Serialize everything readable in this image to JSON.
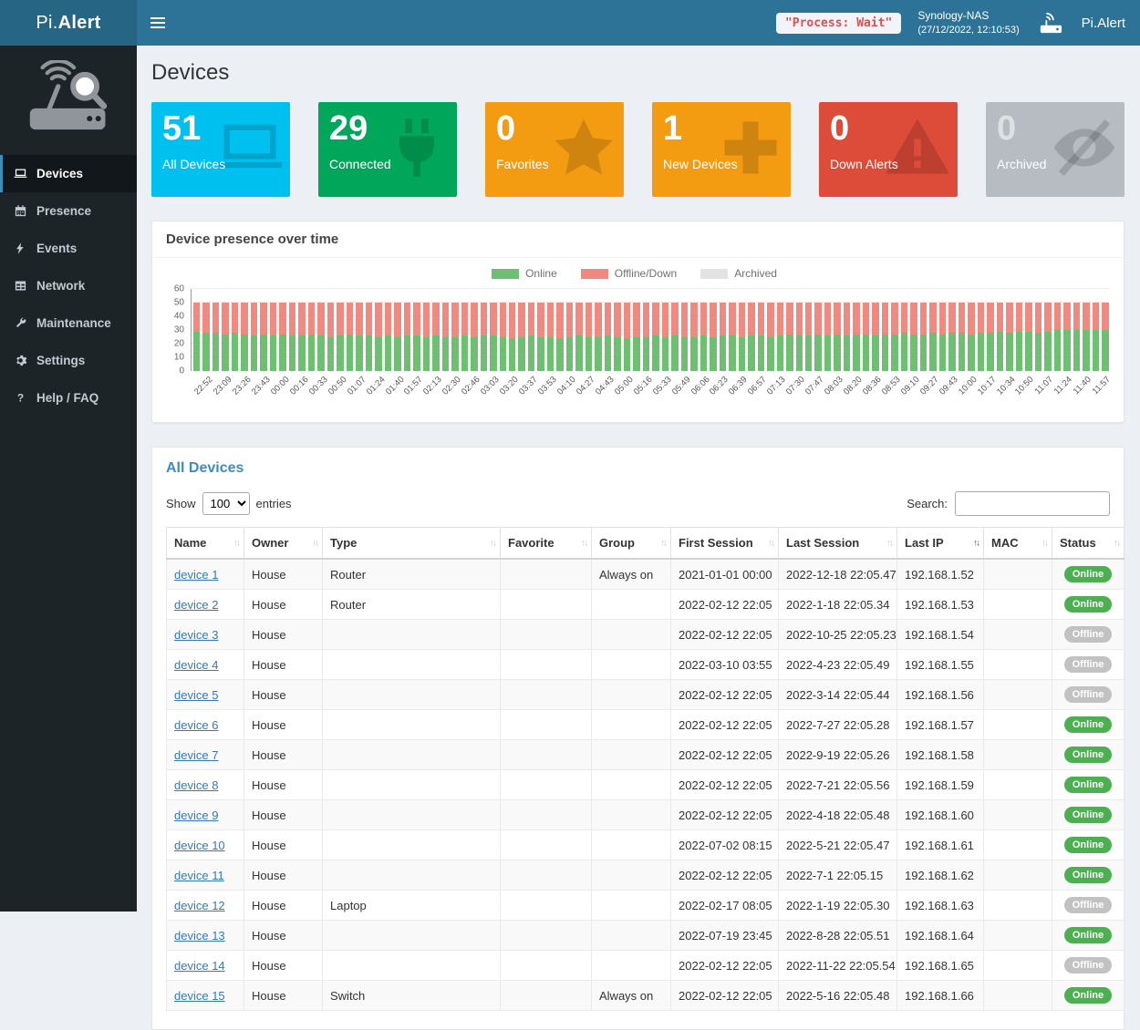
{
  "header": {
    "brand_prefix": "Pi.",
    "brand_bold": "Alert",
    "process_status": "\"Process: Wait\"",
    "host_name": "Synology-NAS",
    "host_time": "(27/12/2022, 12:10:53)",
    "app_name": "Pi.Alert",
    "accent_color": "#2d7397"
  },
  "sidebar": {
    "items": [
      {
        "label": "Devices",
        "icon": "laptop-icon",
        "active": true
      },
      {
        "label": "Presence",
        "icon": "calendar-icon",
        "active": false
      },
      {
        "label": "Events",
        "icon": "bolt-icon",
        "active": false
      },
      {
        "label": "Network",
        "icon": "network-icon",
        "active": false
      },
      {
        "label": "Maintenance",
        "icon": "wrench-icon",
        "active": false
      },
      {
        "label": "Settings",
        "icon": "gear-icon",
        "active": false
      },
      {
        "label": "Help / FAQ",
        "icon": "question-icon",
        "active": false
      }
    ]
  },
  "page": {
    "title": "Devices"
  },
  "summary_boxes": [
    {
      "value": "51",
      "label": "All Devices",
      "color": "#00c0ef",
      "icon": "laptop-icon",
      "muted": false
    },
    {
      "value": "29",
      "label": "Connected",
      "color": "#00a65a",
      "icon": "plug-icon",
      "muted": false
    },
    {
      "value": "0",
      "label": "Favorites",
      "color": "#f39c12",
      "icon": "star-icon",
      "muted": false
    },
    {
      "value": "1",
      "label": "New Devices",
      "color": "#f39c12",
      "icon": "plus-icon",
      "muted": false
    },
    {
      "value": "0",
      "label": "Down Alerts",
      "color": "#dd4b39",
      "icon": "warning-icon",
      "muted": false
    },
    {
      "value": "0",
      "label": "Archived",
      "color": "#b7bcc3",
      "icon": "eye-slash-icon",
      "muted": true
    }
  ],
  "presence_panel": {
    "title": "Device presence over time"
  },
  "chart_data": {
    "type": "bar",
    "stacked": true,
    "title": "Device presence over time",
    "xlabel": "",
    "ylabel": "",
    "ylim": [
      0,
      60
    ],
    "yticks": [
      0,
      10,
      20,
      30,
      40,
      50,
      60
    ],
    "grid": true,
    "legend_position": "top-center",
    "bars_per_label": 2,
    "legend": [
      {
        "name": "Online",
        "color": "#6fbf73"
      },
      {
        "name": "Offline/Down",
        "color": "#f08a80"
      },
      {
        "name": "Archived",
        "color": "#e3e3e3"
      }
    ],
    "x_labels": [
      "22:52",
      "23:09",
      "23:26",
      "23:43",
      "00:00",
      "00:16",
      "00:33",
      "00:50",
      "01:07",
      "01:24",
      "01:40",
      "01:57",
      "02:13",
      "02:30",
      "02:46",
      "03:03",
      "03:20",
      "03:37",
      "03:53",
      "04:10",
      "04:27",
      "04:43",
      "05:00",
      "05:16",
      "05:33",
      "05:49",
      "06:06",
      "06:23",
      "06:39",
      "06:57",
      "07:13",
      "07:30",
      "07:47",
      "08:03",
      "08:20",
      "08:36",
      "08:53",
      "09:10",
      "09:27",
      "09:43",
      "10:00",
      "10:17",
      "10:34",
      "10:50",
      "11:07",
      "11:24",
      "11:40",
      "11:57"
    ],
    "series": [
      {
        "name": "Online",
        "color": "#6fbf73",
        "values": [
          29,
          28,
          28,
          27,
          28,
          27,
          26,
          27,
          26,
          27,
          26,
          26,
          27,
          26,
          25,
          26,
          27,
          26,
          26,
          25,
          26,
          25,
          26,
          26,
          25,
          26,
          25,
          25,
          26,
          25,
          26,
          26,
          25,
          24,
          25,
          26,
          25,
          25,
          24,
          25,
          26,
          25,
          25,
          26,
          25,
          24,
          25,
          25,
          26,
          25,
          26,
          25,
          25,
          26,
          25,
          26,
          26,
          25,
          26,
          26,
          25,
          26,
          27,
          26,
          26,
          27,
          26,
          27,
          26,
          27,
          27,
          26,
          27,
          27,
          28,
          27,
          27,
          28,
          27,
          28,
          28,
          27,
          28,
          28,
          29,
          28,
          29,
          29,
          28,
          29,
          30,
          30,
          30,
          30,
          30,
          30
        ]
      },
      {
        "name": "Offline/Down",
        "color": "#f08a80",
        "values": [
          21,
          22,
          22,
          23,
          22,
          23,
          24,
          23,
          24,
          23,
          24,
          24,
          23,
          24,
          25,
          24,
          23,
          24,
          24,
          25,
          24,
          25,
          24,
          24,
          25,
          24,
          25,
          25,
          24,
          25,
          24,
          24,
          25,
          26,
          25,
          24,
          25,
          25,
          26,
          25,
          24,
          25,
          25,
          24,
          25,
          26,
          25,
          25,
          24,
          25,
          24,
          25,
          25,
          24,
          25,
          24,
          24,
          25,
          24,
          24,
          25,
          24,
          23,
          24,
          24,
          23,
          24,
          23,
          24,
          23,
          23,
          24,
          23,
          23,
          22,
          23,
          23,
          22,
          23,
          22,
          22,
          23,
          22,
          22,
          21,
          22,
          21,
          21,
          22,
          21,
          20,
          20,
          20,
          20,
          20,
          20
        ]
      }
    ]
  },
  "devices_panel": {
    "title": "All Devices",
    "show_label": "Show",
    "entries_label": "entries",
    "page_length": "100",
    "search_label": "Search:",
    "search_value": "",
    "sorted_column": "Last IP",
    "columns": [
      "Name",
      "Owner",
      "Type",
      "Favorite",
      "Group",
      "First Session",
      "Last Session",
      "Last IP",
      "MAC",
      "Status"
    ],
    "status_colors": {
      "Online": "#4caf50",
      "Offline": "#c2c2c2"
    },
    "rows": [
      {
        "name": "device 1",
        "owner": "House",
        "type": "Router",
        "favorite": "",
        "group": "Always on",
        "first_session": "2021-01-01  00:00",
        "last_session": "2022-12-18  22:05.47",
        "last_ip": "192.168.1.52",
        "mac": "",
        "status": "Online"
      },
      {
        "name": "device 2",
        "owner": "House",
        "type": "Router",
        "favorite": "",
        "group": "",
        "first_session": "2022-02-12  22:05",
        "last_session": "2022-1-18  22:05.34",
        "last_ip": "192.168.1.53",
        "mac": "",
        "status": "Online"
      },
      {
        "name": "device 3",
        "owner": "House",
        "type": "",
        "favorite": "",
        "group": "",
        "first_session": "2022-02-12  22:05",
        "last_session": "2022-10-25  22:05.23",
        "last_ip": "192.168.1.54",
        "mac": "",
        "status": "Offline"
      },
      {
        "name": "device 4",
        "owner": "House",
        "type": "",
        "favorite": "",
        "group": "",
        "first_session": "2022-03-10  03:55",
        "last_session": "2022-4-23  22:05.49",
        "last_ip": "192.168.1.55",
        "mac": "",
        "status": "Offline"
      },
      {
        "name": "device 5",
        "owner": "House",
        "type": "",
        "favorite": "",
        "group": "",
        "first_session": "2022-02-12  22:05",
        "last_session": "2022-3-14  22:05.44",
        "last_ip": "192.168.1.56",
        "mac": "",
        "status": "Offline"
      },
      {
        "name": "device 6",
        "owner": "House",
        "type": "",
        "favorite": "",
        "group": "",
        "first_session": "2022-02-12  22:05",
        "last_session": "2022-7-27  22:05.28",
        "last_ip": "192.168.1.57",
        "mac": "",
        "status": "Online"
      },
      {
        "name": "device 7",
        "owner": "House",
        "type": "",
        "favorite": "",
        "group": "",
        "first_session": "2022-02-12  22:05",
        "last_session": "2022-9-19  22:05.26",
        "last_ip": "192.168.1.58",
        "mac": "",
        "status": "Online"
      },
      {
        "name": "device 8",
        "owner": "House",
        "type": "",
        "favorite": "",
        "group": "",
        "first_session": "2022-02-12  22:05",
        "last_session": "2022-7-21  22:05.56",
        "last_ip": "192.168.1.59",
        "mac": "",
        "status": "Online"
      },
      {
        "name": "device 9",
        "owner": "House",
        "type": "",
        "favorite": "",
        "group": "",
        "first_session": "2022-02-12  22:05",
        "last_session": "2022-4-18  22:05.48",
        "last_ip": "192.168.1.60",
        "mac": "",
        "status": "Online"
      },
      {
        "name": "device 10",
        "owner": "House",
        "type": "",
        "favorite": "",
        "group": "",
        "first_session": "2022-07-02  08:15",
        "last_session": "2022-5-21  22:05.47",
        "last_ip": "192.168.1.61",
        "mac": "",
        "status": "Online"
      },
      {
        "name": "device 11",
        "owner": "House",
        "type": "",
        "favorite": "",
        "group": "",
        "first_session": "2022-02-12  22:05",
        "last_session": "2022-7-1  22:05.15",
        "last_ip": "192.168.1.62",
        "mac": "",
        "status": "Online"
      },
      {
        "name": "device 12",
        "owner": "House",
        "type": "Laptop",
        "favorite": "",
        "group": "",
        "first_session": "2022-02-17  08:05",
        "last_session": "2022-1-19  22:05.30",
        "last_ip": "192.168.1.63",
        "mac": "",
        "status": "Offline"
      },
      {
        "name": "device 13",
        "owner": "House",
        "type": "",
        "favorite": "",
        "group": "",
        "first_session": "2022-07-19  23:45",
        "last_session": "2022-8-28  22:05.51",
        "last_ip": "192.168.1.64",
        "mac": "",
        "status": "Online"
      },
      {
        "name": "device 14",
        "owner": "House",
        "type": "",
        "favorite": "",
        "group": "",
        "first_session": "2022-02-12  22:05",
        "last_session": "2022-11-22  22:05.54",
        "last_ip": "192.168.1.65",
        "mac": "",
        "status": "Offline"
      },
      {
        "name": "device 15",
        "owner": "House",
        "type": "Switch",
        "favorite": "",
        "group": "Always on",
        "first_session": "2022-02-12  22:05",
        "last_session": "2022-5-16  22:05.48",
        "last_ip": "192.168.1.66",
        "mac": "",
        "status": "Online"
      }
    ]
  }
}
